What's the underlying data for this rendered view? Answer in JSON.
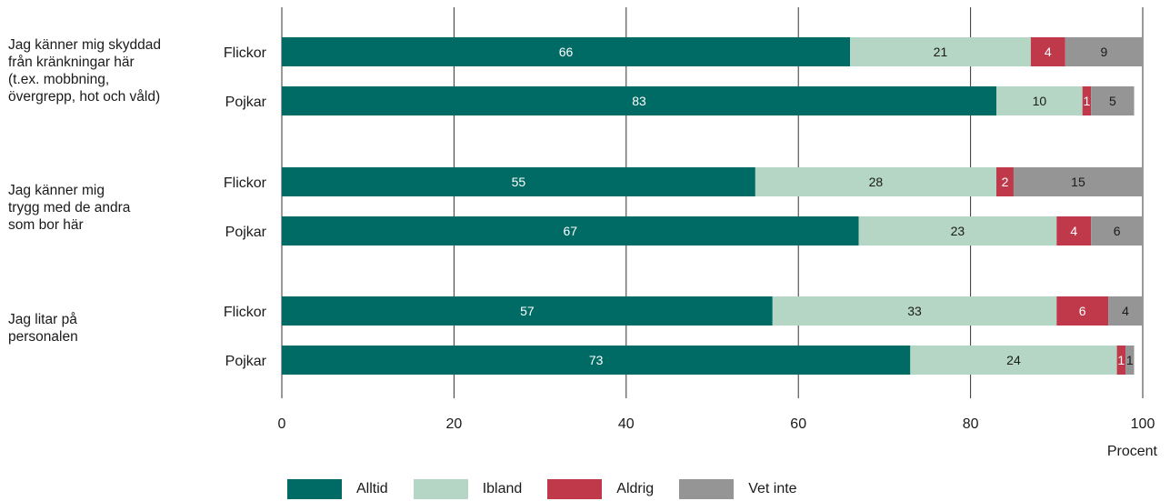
{
  "chart_data": {
    "type": "bar",
    "orientation": "horizontal",
    "stacked": true,
    "xlabel": "Procent",
    "xlim": [
      0,
      100
    ],
    "xticks": [
      0,
      20,
      40,
      60,
      80,
      100
    ],
    "grid": true,
    "legend_position": "bottom",
    "series": [
      {
        "name": "Alltid",
        "color": "#006b64"
      },
      {
        "name": "Ibland",
        "color": "#b5d6c5"
      },
      {
        "name": "Aldrig",
        "color": "#c0394b"
      },
      {
        "name": "Vet inte",
        "color": "#959595"
      }
    ],
    "groups": [
      {
        "label_lines": [
          "Jag känner mig skyddad",
          "från kränkningar här",
          "(t.ex. mobbning,",
          "övergrepp, hot och våld)"
        ],
        "bars": [
          {
            "category": "Flickor",
            "values": [
              66,
              21,
              4,
              9
            ]
          },
          {
            "category": "Pojkar",
            "values": [
              83,
              10,
              1,
              5
            ]
          }
        ]
      },
      {
        "label_lines": [
          "Jag känner mig",
          "trygg med de andra",
          "som bor här"
        ],
        "bars": [
          {
            "category": "Flickor",
            "values": [
              55,
              28,
              2,
              15
            ]
          },
          {
            "category": "Pojkar",
            "values": [
              67,
              23,
              4,
              6
            ]
          }
        ]
      },
      {
        "label_lines": [
          "Jag litar på",
          "personalen"
        ],
        "bars": [
          {
            "category": "Flickor",
            "values": [
              57,
              33,
              6,
              4
            ]
          },
          {
            "category": "Pojkar",
            "values": [
              73,
              24,
              1,
              1
            ]
          }
        ]
      }
    ]
  }
}
